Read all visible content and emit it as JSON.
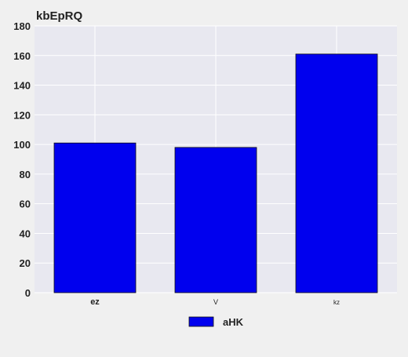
{
  "chart_data": {
    "type": "bar",
    "title": "kbEpRQ",
    "categories": [
      "ez",
      "V",
      "kz"
    ],
    "series": [
      {
        "name": "aHK",
        "values": [
          101,
          98,
          161
        ]
      }
    ],
    "xlabel": "",
    "ylabel": "",
    "ylim": [
      0,
      180
    ],
    "yticks": [
      0,
      20,
      40,
      60,
      80,
      100,
      120,
      140,
      160,
      180
    ],
    "grid": true,
    "legend": "bottom-center",
    "colors": {
      "bar": "#0000ee",
      "plot_background": "#e8e8f0",
      "page_background": "#f0f0f0",
      "grid": "#ffffff"
    }
  }
}
